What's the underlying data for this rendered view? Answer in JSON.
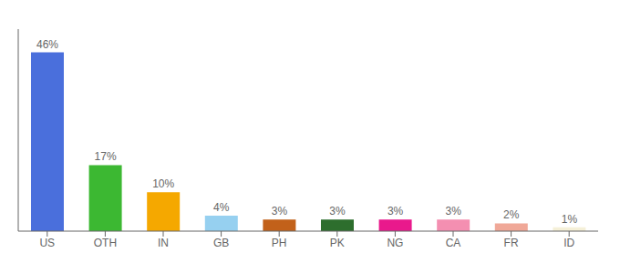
{
  "chart_data": {
    "type": "bar",
    "categories": [
      "US",
      "OTH",
      "IN",
      "GB",
      "PH",
      "PK",
      "NG",
      "CA",
      "FR",
      "ID"
    ],
    "values": [
      46,
      17,
      10,
      4,
      3,
      3,
      3,
      3,
      2,
      1
    ],
    "value_labels": [
      "46%",
      "17%",
      "10%",
      "4%",
      "3%",
      "3%",
      "3%",
      "3%",
      "2%",
      "1%"
    ],
    "colors": [
      "#4a6fdc",
      "#3cb832",
      "#f5a800",
      "#96d0f0",
      "#c2611a",
      "#2d6e2d",
      "#e9198c",
      "#f48fb1",
      "#f0a898",
      "#f5f0d8"
    ],
    "ylim": [
      0,
      52
    ],
    "data_labels": true,
    "tick_labels": "x",
    "grid": false
  }
}
